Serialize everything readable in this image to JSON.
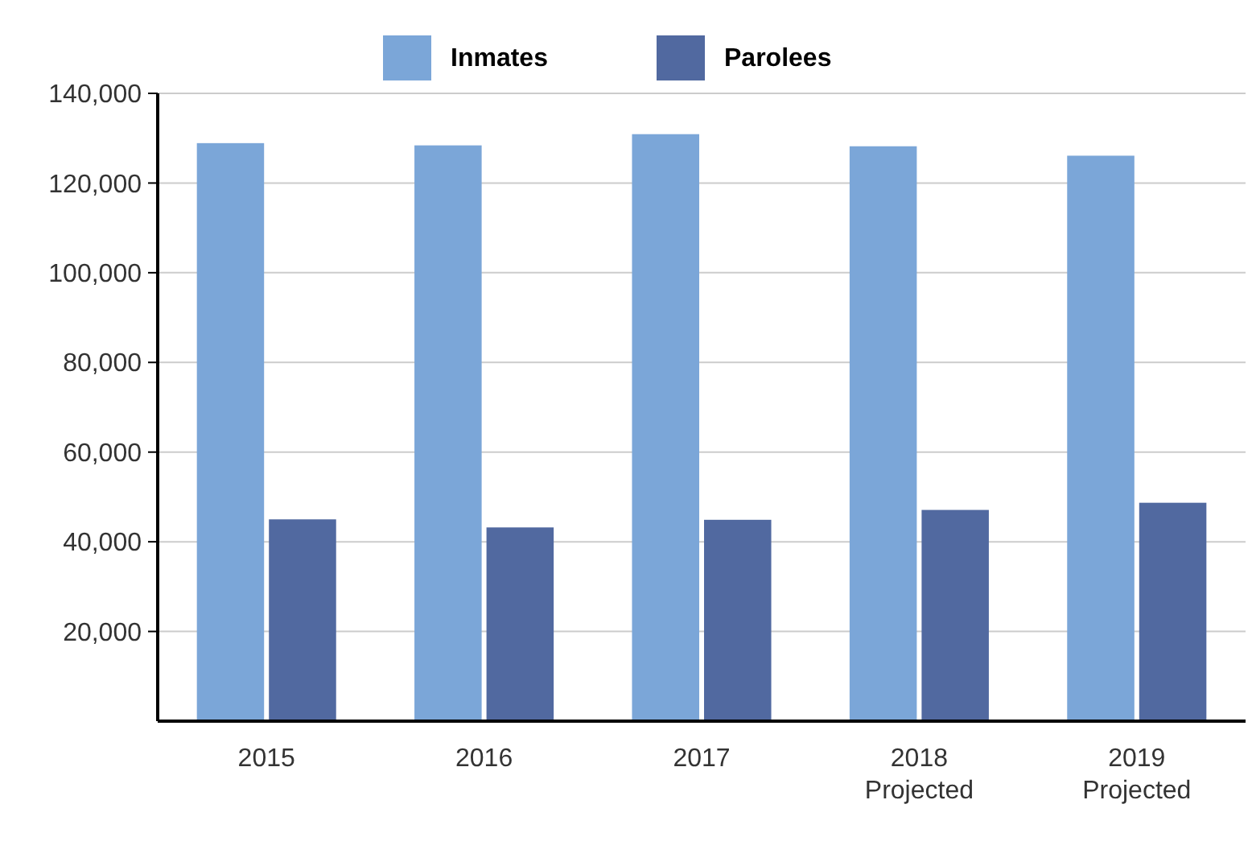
{
  "chart_data": {
    "type": "bar",
    "categories": [
      "2015",
      "2016",
      "2017",
      "2018\nProjected",
      "2019\nProjected"
    ],
    "series": [
      {
        "name": "Inmates",
        "color": "#7ba6d8",
        "values": [
          128900,
          128400,
          130900,
          128200,
          126100
        ]
      },
      {
        "name": "Parolees",
        "color": "#5169a0",
        "values": [
          45000,
          43200,
          44900,
          47100,
          48700
        ]
      }
    ],
    "ylim": [
      0,
      140000
    ],
    "yticks": [
      {
        "value": 20000,
        "label": "20,000"
      },
      {
        "value": 40000,
        "label": "40,000"
      },
      {
        "value": 60000,
        "label": "60,000"
      },
      {
        "value": 80000,
        "label": "80,000"
      },
      {
        "value": 100000,
        "label": "100,000"
      },
      {
        "value": 120000,
        "label": "120,000"
      },
      {
        "value": 140000,
        "label": "140,000"
      }
    ],
    "grid": "y",
    "legend": "top"
  }
}
